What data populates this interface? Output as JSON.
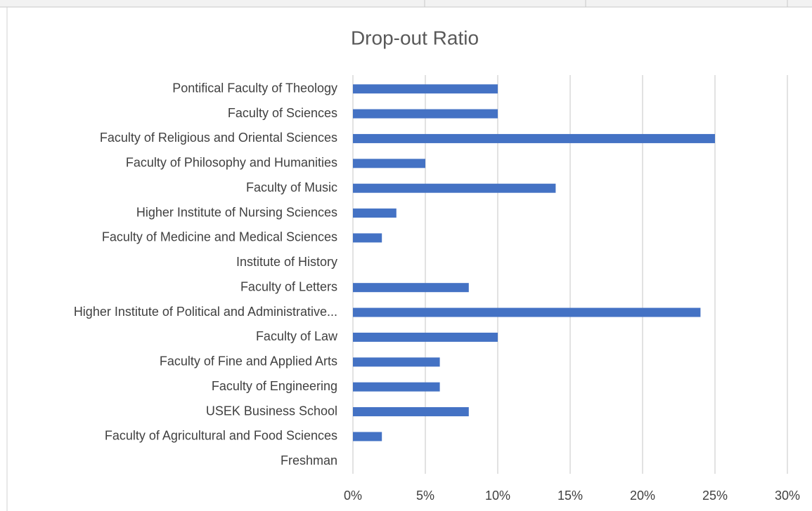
{
  "chart_data": {
    "type": "bar",
    "orientation": "horizontal",
    "title": "Drop-out Ratio",
    "categories": [
      "Pontifical Faculty of Theology",
      "Faculty of Sciences",
      "Faculty of Religious and Oriental Sciences",
      "Faculty of Philosophy and Humanities",
      "Faculty of Music",
      "Higher Institute of Nursing Sciences",
      "Faculty of Medicine and Medical Sciences",
      "Institute of History",
      "Faculty of Letters",
      "Higher Institute of Political and Administrative...",
      "Faculty of Law",
      "Faculty of Fine and Applied Arts",
      "Faculty of Engineering",
      "USEK Business School",
      "Faculty of Agricultural and Food Sciences",
      "Freshman"
    ],
    "values": [
      10,
      10,
      25,
      5,
      14,
      3,
      2,
      0,
      8,
      24,
      10,
      6,
      6,
      8,
      2,
      0
    ],
    "color": "#4472c4",
    "xlim": [
      0,
      30
    ],
    "xticks": [
      {
        "value": 0,
        "label": "0%"
      },
      {
        "value": 5,
        "label": "5%"
      },
      {
        "value": 10,
        "label": "10%"
      },
      {
        "value": 15,
        "label": "15%"
      },
      {
        "value": 20,
        "label": "20%"
      },
      {
        "value": 25,
        "label": "25%"
      },
      {
        "value": 30,
        "label": "30%"
      }
    ],
    "grid": true
  }
}
